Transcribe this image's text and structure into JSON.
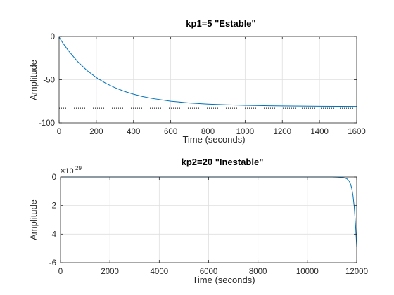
{
  "chart_data": [
    {
      "type": "line",
      "title": "kp1=5 \"Estable\"",
      "xlabel": "Time (seconds)",
      "ylabel": "Amplitude",
      "xlim": [
        0,
        1600
      ],
      "ylim": [
        -100,
        0
      ],
      "x_ticks": [
        "0",
        "200",
        "400",
        "600",
        "800",
        "1000",
        "1200",
        "1400",
        "1600"
      ],
      "y_ticks": [
        "0",
        "-50",
        "-100"
      ],
      "grid": true,
      "legend": "none",
      "steady_state_value": -83,
      "steady_state_line_style": "dotted",
      "series": [
        {
          "color": "#0072BD",
          "x": [
            0,
            5,
            20,
            50,
            100,
            150,
            200,
            250,
            300,
            350,
            400,
            450,
            500,
            600,
            700,
            800,
            900,
            1000,
            1100,
            1200,
            1300,
            1400,
            1500,
            1600
          ],
          "y": [
            0,
            -2.5,
            -7.5,
            -16.4,
            -29.1,
            -39.3,
            -47.5,
            -54.0,
            -59.2,
            -63.4,
            -66.8,
            -69.5,
            -71.7,
            -74.9,
            -76.9,
            -78.2,
            -79.1,
            -79.7,
            -80.1,
            -80.4,
            -80.6,
            -80.8,
            -80.9,
            -81.0
          ]
        }
      ]
    },
    {
      "type": "line",
      "title": "kp2=20 \"Inestable\"",
      "xlabel": "Time (seconds)",
      "ylabel": "Amplitude",
      "xlim": [
        0,
        12000
      ],
      "ylim": [
        -6,
        0
      ],
      "y_scale_exponent": {
        "base": "×10",
        "power": "29"
      },
      "x_ticks": [
        "0",
        "2000",
        "4000",
        "6000",
        "8000",
        "10000",
        "12000"
      ],
      "y_ticks": [
        "0",
        "-2",
        "-4",
        "-6"
      ],
      "grid": true,
      "legend": "none",
      "series": [
        {
          "color": "#0072BD",
          "x": [
            0,
            2000,
            4000,
            6000,
            8000,
            10000,
            11000,
            11200,
            11400,
            11500,
            11600,
            11700,
            11750,
            11800,
            11850,
            11900,
            11950,
            12000
          ],
          "y": [
            0,
            0,
            0,
            0,
            0,
            0,
            0,
            -0.01,
            -0.03,
            -0.06,
            -0.12,
            -0.3,
            -0.5,
            -0.8,
            -1.3,
            -2.1,
            -3.3,
            -4.9
          ]
        }
      ]
    }
  ]
}
